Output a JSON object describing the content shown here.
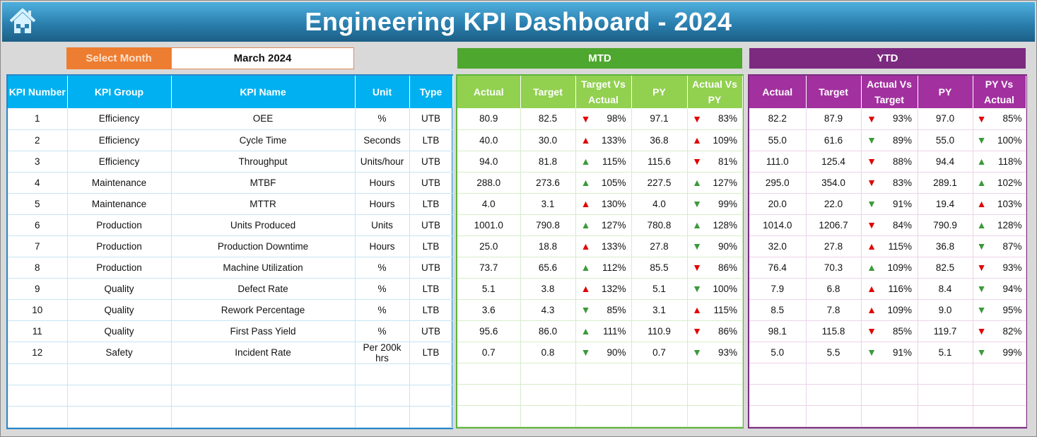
{
  "header": {
    "title": "Engineering KPI Dashboard - 2024",
    "home_icon": "home-icon"
  },
  "selector": {
    "label": "Select Month",
    "value": "March 2024",
    "label_color": "#ed7d31"
  },
  "sections": {
    "mtd": "MTD",
    "ytd": "YTD"
  },
  "colors": {
    "info_header": "#00b0f0",
    "mtd_header": "#92d050",
    "mtd_banner": "#4ea72e",
    "ytd_header": "#a2309f",
    "ytd_banner": "#7c2a80",
    "up_good": "#3a9a3a",
    "bad": "#e00000"
  },
  "info_columns": [
    "KPI Number",
    "KPI Group",
    "KPI Name",
    "Unit",
    "Type"
  ],
  "mtd_columns": [
    "Actual",
    "Target",
    "Target Vs Actual",
    "PY",
    "Actual Vs PY"
  ],
  "ytd_columns": [
    "Actual",
    "Target",
    "Actual Vs Target",
    "PY",
    "PY Vs Actual"
  ],
  "rows": [
    {
      "num": "1",
      "group": "Efficiency",
      "name": "OEE",
      "unit": "%",
      "type": "UTB",
      "mtd": [
        "80.9",
        "82.5",
        [
          "down",
          "red",
          "98%"
        ],
        "97.1",
        [
          "down",
          "red",
          "83%"
        ]
      ],
      "ytd": [
        "82.2",
        "87.9",
        [
          "down",
          "red",
          "93%"
        ],
        "97.0",
        [
          "down",
          "red",
          "85%"
        ]
      ]
    },
    {
      "num": "2",
      "group": "Efficiency",
      "name": "Cycle Time",
      "unit": "Seconds",
      "type": "LTB",
      "mtd": [
        "40.0",
        "30.0",
        [
          "up",
          "red",
          "133%"
        ],
        "36.8",
        [
          "up",
          "red",
          "109%"
        ]
      ],
      "ytd": [
        "55.0",
        "61.6",
        [
          "down",
          "green",
          "89%"
        ],
        "55.0",
        [
          "down",
          "green",
          "100%"
        ]
      ]
    },
    {
      "num": "3",
      "group": "Efficiency",
      "name": "Throughput",
      "unit": "Units/hour",
      "type": "UTB",
      "mtd": [
        "94.0",
        "81.8",
        [
          "up",
          "green",
          "115%"
        ],
        "115.6",
        [
          "down",
          "red",
          "81%"
        ]
      ],
      "ytd": [
        "111.0",
        "125.4",
        [
          "down",
          "red",
          "88%"
        ],
        "94.4",
        [
          "up",
          "green",
          "118%"
        ]
      ]
    },
    {
      "num": "4",
      "group": "Maintenance",
      "name": "MTBF",
      "unit": "Hours",
      "type": "UTB",
      "mtd": [
        "288.0",
        "273.6",
        [
          "up",
          "green",
          "105%"
        ],
        "227.5",
        [
          "up",
          "green",
          "127%"
        ]
      ],
      "ytd": [
        "295.0",
        "354.0",
        [
          "down",
          "red",
          "83%"
        ],
        "289.1",
        [
          "up",
          "green",
          "102%"
        ]
      ]
    },
    {
      "num": "5",
      "group": "Maintenance",
      "name": "MTTR",
      "unit": "Hours",
      "type": "LTB",
      "mtd": [
        "4.0",
        "3.1",
        [
          "up",
          "red",
          "130%"
        ],
        "4.0",
        [
          "down",
          "green",
          "99%"
        ]
      ],
      "ytd": [
        "20.0",
        "22.0",
        [
          "down",
          "green",
          "91%"
        ],
        "19.4",
        [
          "up",
          "red",
          "103%"
        ]
      ]
    },
    {
      "num": "6",
      "group": "Production",
      "name": "Units Produced",
      "unit": "Units",
      "type": "UTB",
      "mtd": [
        "1001.0",
        "790.8",
        [
          "up",
          "green",
          "127%"
        ],
        "780.8",
        [
          "up",
          "green",
          "128%"
        ]
      ],
      "ytd": [
        "1014.0",
        "1206.7",
        [
          "down",
          "red",
          "84%"
        ],
        "790.9",
        [
          "up",
          "green",
          "128%"
        ]
      ]
    },
    {
      "num": "7",
      "group": "Production",
      "name": "Production Downtime",
      "unit": "Hours",
      "type": "LTB",
      "mtd": [
        "25.0",
        "18.8",
        [
          "up",
          "red",
          "133%"
        ],
        "27.8",
        [
          "down",
          "green",
          "90%"
        ]
      ],
      "ytd": [
        "32.0",
        "27.8",
        [
          "up",
          "red",
          "115%"
        ],
        "36.8",
        [
          "down",
          "green",
          "87%"
        ]
      ]
    },
    {
      "num": "8",
      "group": "Production",
      "name": "Machine Utilization",
      "unit": "%",
      "type": "UTB",
      "mtd": [
        "73.7",
        "65.6",
        [
          "up",
          "green",
          "112%"
        ],
        "85.5",
        [
          "down",
          "red",
          "86%"
        ]
      ],
      "ytd": [
        "76.4",
        "70.3",
        [
          "up",
          "green",
          "109%"
        ],
        "82.5",
        [
          "down",
          "red",
          "93%"
        ]
      ]
    },
    {
      "num": "9",
      "group": "Quality",
      "name": "Defect Rate",
      "unit": "%",
      "type": "LTB",
      "mtd": [
        "5.1",
        "3.8",
        [
          "up",
          "red",
          "132%"
        ],
        "5.1",
        [
          "down",
          "green",
          "100%"
        ]
      ],
      "ytd": [
        "7.9",
        "6.8",
        [
          "up",
          "red",
          "116%"
        ],
        "8.4",
        [
          "down",
          "green",
          "94%"
        ]
      ]
    },
    {
      "num": "10",
      "group": "Quality",
      "name": "Rework Percentage",
      "unit": "%",
      "type": "LTB",
      "mtd": [
        "3.6",
        "4.3",
        [
          "down",
          "green",
          "85%"
        ],
        "3.1",
        [
          "up",
          "red",
          "115%"
        ]
      ],
      "ytd": [
        "8.5",
        "7.8",
        [
          "up",
          "red",
          "109%"
        ],
        "9.0",
        [
          "down",
          "green",
          "95%"
        ]
      ]
    },
    {
      "num": "11",
      "group": "Quality",
      "name": "First Pass Yield",
      "unit": "%",
      "type": "UTB",
      "mtd": [
        "95.6",
        "86.0",
        [
          "up",
          "green",
          "111%"
        ],
        "110.9",
        [
          "down",
          "red",
          "86%"
        ]
      ],
      "ytd": [
        "98.1",
        "115.8",
        [
          "down",
          "red",
          "85%"
        ],
        "119.7",
        [
          "down",
          "red",
          "82%"
        ]
      ]
    },
    {
      "num": "12",
      "group": "Safety",
      "name": "Incident Rate",
      "unit": "Per 200k hrs",
      "type": "LTB",
      "mtd": [
        "0.7",
        "0.8",
        [
          "down",
          "green",
          "90%"
        ],
        "0.7",
        [
          "down",
          "green",
          "93%"
        ]
      ],
      "ytd": [
        "5.0",
        "5.5",
        [
          "down",
          "green",
          "91%"
        ],
        "5.1",
        [
          "down",
          "green",
          "99%"
        ]
      ]
    }
  ]
}
